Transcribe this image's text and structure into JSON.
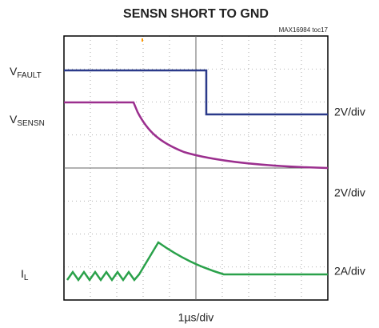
{
  "header": {
    "title": "SENSN SHORT TO GND",
    "figure_id": "MAX16984 toc17"
  },
  "traces": [
    {
      "label": {
        "main": "V",
        "sub": "FAULT"
      },
      "scale": "2V/div"
    },
    {
      "label": {
        "main": "V",
        "sub": "SENSN"
      },
      "scale": "2V/div"
    },
    {
      "label": {
        "main": "I",
        "sub": "L"
      },
      "scale": "2A/div"
    }
  ],
  "timebase": "1µs/div"
}
